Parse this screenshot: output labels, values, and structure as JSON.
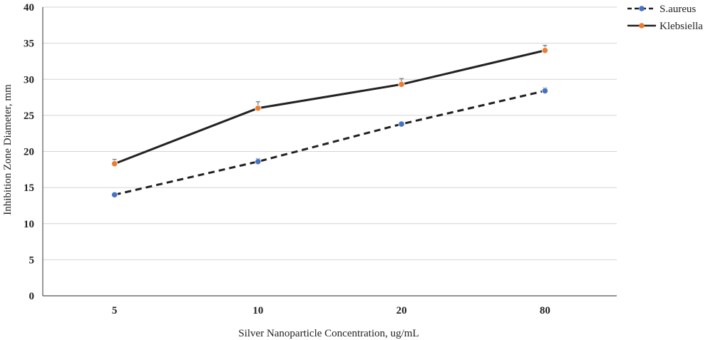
{
  "chart_data": {
    "type": "line",
    "categories": [
      "5",
      "10",
      "20",
      "80"
    ],
    "xlabel": "Silver Nanoparticle Concentration, ug/mL",
    "ylabel": "Inhibition Zone Diameter, mm",
    "ylim": [
      0,
      40
    ],
    "yticks": [
      0,
      5,
      10,
      15,
      20,
      25,
      30,
      35,
      40
    ],
    "grid": true,
    "legend_position": "top-right",
    "series": [
      {
        "name": "S.aureus",
        "values": [
          14.0,
          18.6,
          23.8,
          28.4
        ],
        "errors": [
          0.3,
          0.4,
          0.3,
          0.4
        ],
        "line_style": "dashed",
        "line_color": "#222222",
        "marker_color": "#4472c4"
      },
      {
        "name": "Klebsiella",
        "values": [
          18.3,
          26.0,
          29.3,
          34.0
        ],
        "errors": [
          0.6,
          0.9,
          0.8,
          0.7
        ],
        "line_style": "solid",
        "line_color": "#222222",
        "marker_color": "#ed7d31"
      }
    ]
  }
}
